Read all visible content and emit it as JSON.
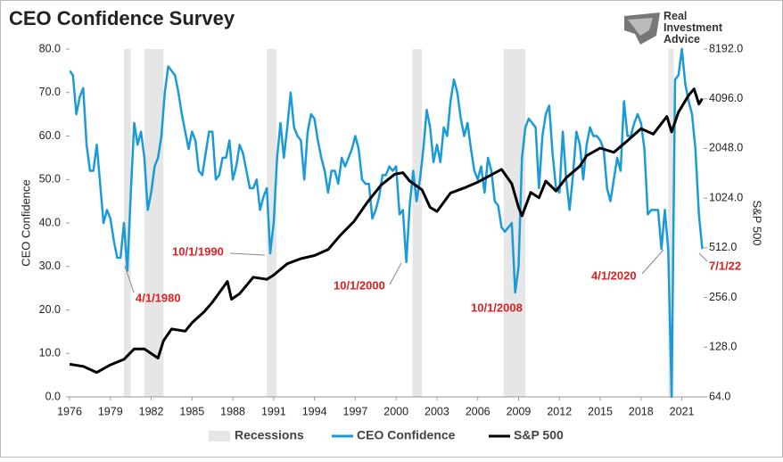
{
  "chart_data": {
    "type": "line",
    "title": "CEO Confidence Survey",
    "brand": "Real Investment Advice",
    "ylabel": "CEO Confidence",
    "y2label": "S&P 500",
    "xlim": [
      1976,
      2022.6
    ],
    "xticks": [
      1976,
      1979,
      1982,
      1985,
      1988,
      1991,
      1994,
      1997,
      2000,
      2003,
      2006,
      2009,
      2012,
      2015,
      2018,
      2021
    ],
    "ylim": [
      0,
      80
    ],
    "yticks": [
      {
        "value": 0,
        "label": "0.0"
      },
      {
        "value": 10,
        "label": "10.0"
      },
      {
        "value": 20,
        "label": "20.0"
      },
      {
        "value": 30,
        "label": "30.0"
      },
      {
        "value": 40,
        "label": "40.0"
      },
      {
        "value": 50,
        "label": "50.0"
      },
      {
        "value": 60,
        "label": "60.0"
      },
      {
        "value": 70,
        "label": "70.0"
      },
      {
        "value": 80,
        "label": "80.0"
      }
    ],
    "y2lim": [
      64,
      8192
    ],
    "y2scale": "log",
    "y2ticks": [
      {
        "value": 64,
        "label": "64.0"
      },
      {
        "value": 128,
        "label": "128.0"
      },
      {
        "value": 256,
        "label": "256.0"
      },
      {
        "value": 512,
        "label": "512.0"
      },
      {
        "value": 1024,
        "label": "1024.0"
      },
      {
        "value": 2048,
        "label": "2048.0"
      },
      {
        "value": 4096,
        "label": "4096.0"
      },
      {
        "value": 8192,
        "label": "8192.0"
      }
    ],
    "recessions": {
      "name": "Recessions",
      "color": "#e6e6e6",
      "periods": [
        [
          1980.0,
          1980.5
        ],
        [
          1981.5,
          1982.9
        ],
        [
          1990.5,
          1991.2
        ],
        [
          2001.2,
          2001.9
        ],
        [
          2007.9,
          2009.5
        ],
        [
          2020.0,
          2020.4
        ]
      ]
    },
    "series": [
      {
        "name": "CEO Confidence",
        "color": "#1a9bd7",
        "axis": "y",
        "x": [
          1976.0,
          1976.25,
          1976.5,
          1976.75,
          1977.0,
          1977.25,
          1977.5,
          1977.75,
          1978.0,
          1978.25,
          1978.5,
          1978.75,
          1979.0,
          1979.25,
          1979.5,
          1979.75,
          1980.0,
          1980.25,
          1980.5,
          1980.75,
          1981.0,
          1981.25,
          1981.5,
          1981.75,
          1982.0,
          1982.25,
          1982.5,
          1982.75,
          1983.0,
          1983.25,
          1983.5,
          1983.75,
          1984.0,
          1984.25,
          1984.5,
          1984.75,
          1985.0,
          1985.25,
          1985.5,
          1985.75,
          1986.0,
          1986.25,
          1986.5,
          1986.75,
          1987.0,
          1987.25,
          1987.5,
          1987.75,
          1988.0,
          1988.25,
          1988.5,
          1988.75,
          1989.0,
          1989.25,
          1989.5,
          1989.75,
          1990.0,
          1990.25,
          1990.5,
          1990.75,
          1991.0,
          1991.25,
          1991.5,
          1991.75,
          1992.0,
          1992.25,
          1992.5,
          1992.75,
          1993.0,
          1993.25,
          1993.5,
          1993.75,
          1994.0,
          1994.25,
          1994.5,
          1994.75,
          1995.0,
          1995.25,
          1995.5,
          1995.75,
          1996.0,
          1996.25,
          1996.5,
          1996.75,
          1997.0,
          1997.25,
          1997.5,
          1997.75,
          1998.0,
          1998.25,
          1998.5,
          1998.75,
          1999.0,
          1999.25,
          1999.5,
          1999.75,
          2000.0,
          2000.25,
          2000.5,
          2000.75,
          2001.0,
          2001.25,
          2001.5,
          2001.75,
          2002.0,
          2002.25,
          2002.5,
          2002.75,
          2003.0,
          2003.25,
          2003.5,
          2003.75,
          2004.0,
          2004.25,
          2004.5,
          2004.75,
          2005.0,
          2005.25,
          2005.5,
          2005.75,
          2006.0,
          2006.25,
          2006.5,
          2006.75,
          2007.0,
          2007.25,
          2007.5,
          2007.75,
          2008.0,
          2008.25,
          2008.5,
          2008.75,
          2009.0,
          2009.25,
          2009.5,
          2009.75,
          2010.0,
          2010.25,
          2010.5,
          2010.75,
          2011.0,
          2011.25,
          2011.5,
          2011.75,
          2012.0,
          2012.25,
          2012.5,
          2012.75,
          2013.0,
          2013.25,
          2013.5,
          2013.75,
          2014.0,
          2014.25,
          2014.5,
          2014.75,
          2015.0,
          2015.25,
          2015.5,
          2015.75,
          2016.0,
          2016.25,
          2016.5,
          2016.75,
          2017.0,
          2017.25,
          2017.5,
          2017.75,
          2018.0,
          2018.25,
          2018.5,
          2018.75,
          2019.0,
          2019.25,
          2019.5,
          2019.75,
          2020.0,
          2020.25,
          2020.5,
          2020.75,
          2021.0,
          2021.25,
          2021.5,
          2021.75,
          2022.0,
          2022.25,
          2022.5
        ],
        "values": [
          75,
          74,
          65,
          69,
          71,
          58,
          52,
          52,
          58,
          49,
          40,
          43,
          41,
          36,
          32,
          32,
          40,
          29,
          47,
          63,
          58,
          61,
          55,
          43,
          47,
          53,
          55,
          60,
          70,
          76,
          75,
          74,
          70,
          65,
          61,
          57,
          61,
          59,
          52,
          51,
          56,
          61,
          61,
          50,
          51,
          55,
          55,
          59,
          50,
          53,
          58,
          56,
          52,
          48,
          48,
          50,
          43,
          46,
          48,
          33,
          40,
          55,
          63,
          55,
          62,
          70,
          62,
          60,
          59,
          50,
          61,
          65,
          64,
          59,
          55,
          52,
          47,
          52,
          52,
          49,
          55,
          53,
          55,
          57,
          60,
          57,
          50,
          49,
          49,
          41,
          43,
          46,
          51,
          51,
          53,
          52,
          53,
          42,
          43,
          31,
          44,
          52,
          45,
          50,
          57,
          66,
          62,
          54,
          58,
          54,
          62,
          60,
          68,
          73,
          70,
          64,
          60,
          63,
          57,
          52,
          50,
          53,
          47,
          55,
          52,
          45,
          44,
          39,
          38,
          39,
          40,
          24,
          30,
          55,
          62,
          64,
          63,
          62,
          48,
          60,
          65,
          67,
          56,
          48,
          47,
          61,
          50,
          43,
          51,
          61,
          58,
          50,
          58,
          62,
          60,
          60,
          59,
          57,
          48,
          45,
          50,
          55,
          52,
          68,
          60,
          60,
          63,
          65,
          63,
          57,
          42,
          43,
          43,
          43,
          34,
          43,
          34,
          0,
          73,
          74,
          80,
          72,
          68,
          65,
          57,
          42,
          34
        ]
      },
      {
        "name": "S&P 500",
        "color": "#000000",
        "axis": "y2",
        "x": [
          1976.0,
          1977.0,
          1978.0,
          1979.0,
          1980.0,
          1980.75,
          1981.5,
          1982.5,
          1982.9,
          1983.5,
          1984.5,
          1985.0,
          1985.9,
          1986.5,
          1987.6,
          1987.9,
          1988.5,
          1989.5,
          1990.5,
          1991.0,
          1992.0,
          1993.0,
          1994.0,
          1995.0,
          1995.9,
          1996.9,
          1997.9,
          1998.9,
          1999.9,
          2000.5,
          2001.0,
          2001.9,
          2002.5,
          2003.0,
          2004.0,
          2005.0,
          2006.0,
          2007.0,
          2007.75,
          2008.5,
          2009.0,
          2009.25,
          2009.9,
          2010.5,
          2011.0,
          2011.75,
          2012.5,
          2013.5,
          2014.0,
          2015.0,
          2016.0,
          2017.0,
          2018.0,
          2018.9,
          2019.9,
          2020.25,
          2020.75,
          2021.5,
          2021.9,
          2022.25,
          2022.5
        ],
        "values": [
          101,
          98,
          90,
          100,
          108,
          125,
          125,
          110,
          140,
          165,
          160,
          180,
          210,
          240,
          320,
          250,
          270,
          340,
          330,
          350,
          410,
          440,
          460,
          500,
          610,
          740,
          970,
          1230,
          1430,
          1460,
          1300,
          1150,
          900,
          850,
          1100,
          1180,
          1280,
          1420,
          1530,
          1250,
          900,
          800,
          1110,
          1030,
          1300,
          1130,
          1360,
          1600,
          1850,
          2060,
          1940,
          2280,
          2700,
          2500,
          3200,
          2580,
          3400,
          4300,
          4700,
          3800,
          4100
        ]
      }
    ],
    "annotations": [
      "4/1/1980",
      "10/1/1990",
      "10/1/2000",
      "10/1/2008",
      "4/1/2020",
      "7/1/22"
    ]
  }
}
